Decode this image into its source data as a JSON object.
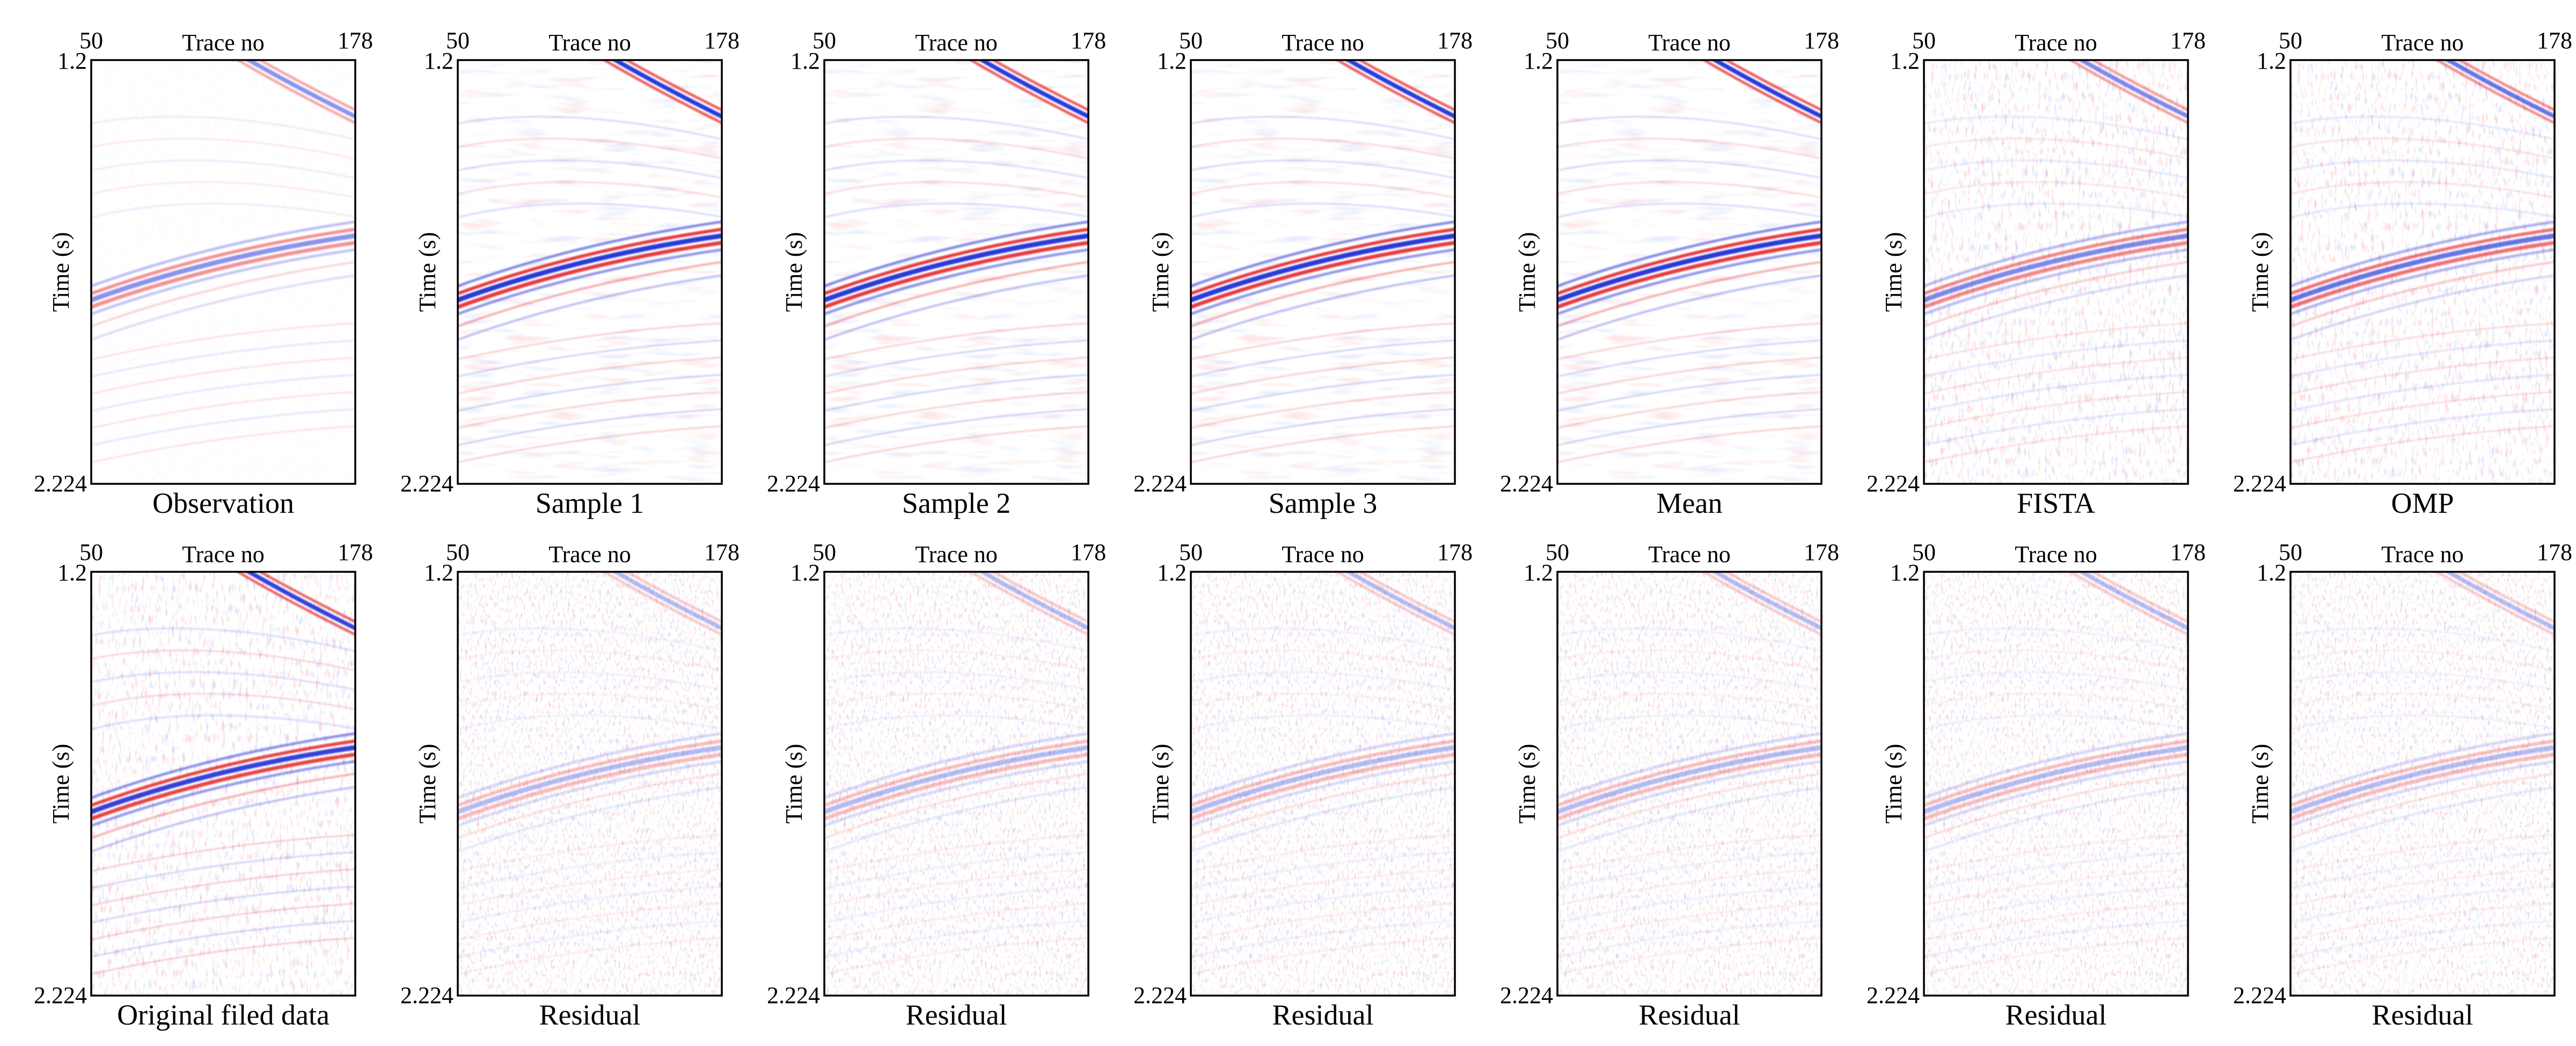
{
  "colors": {
    "positive": "#e31a1c",
    "negative": "#1f2fd6",
    "background": "#ffffff",
    "frame": "#000000"
  },
  "chart_data": [
    {
      "type": "heatmap",
      "title": "Observation",
      "xlabel": "Trace no",
      "ylabel": "Time (s)",
      "xlim": [
        50,
        178
      ],
      "ylim": [
        1.2,
        2.224
      ],
      "x_ticks": [
        "50",
        "178"
      ],
      "y_ticks": [
        "1.2",
        "2.224"
      ]
    },
    {
      "type": "heatmap",
      "title": "Sample 1",
      "xlabel": "Trace no",
      "ylabel": "Time (s)",
      "xlim": [
        50,
        178
      ],
      "ylim": [
        1.2,
        2.224
      ],
      "x_ticks": [
        "50",
        "178"
      ],
      "y_ticks": [
        "1.2",
        "2.224"
      ]
    },
    {
      "type": "heatmap",
      "title": "Sample 2",
      "xlabel": "Trace no",
      "ylabel": "Time (s)",
      "xlim": [
        50,
        178
      ],
      "ylim": [
        1.2,
        2.224
      ],
      "x_ticks": [
        "50",
        "178"
      ],
      "y_ticks": [
        "1.2",
        "2.224"
      ]
    },
    {
      "type": "heatmap",
      "title": "Sample 3",
      "xlabel": "Trace no",
      "ylabel": "Time (s)",
      "xlim": [
        50,
        178
      ],
      "ylim": [
        1.2,
        2.224
      ],
      "x_ticks": [
        "50",
        "178"
      ],
      "y_ticks": [
        "1.2",
        "2.224"
      ]
    },
    {
      "type": "heatmap",
      "title": "Mean",
      "xlabel": "Trace no",
      "ylabel": "Time (s)",
      "xlim": [
        50,
        178
      ],
      "ylim": [
        1.2,
        2.224
      ],
      "x_ticks": [
        "50",
        "178"
      ],
      "y_ticks": [
        "1.2",
        "2.224"
      ]
    },
    {
      "type": "heatmap",
      "title": "FISTA",
      "xlabel": "Trace no",
      "ylabel": "Time (s)",
      "xlim": [
        50,
        178
      ],
      "ylim": [
        1.2,
        2.224
      ],
      "x_ticks": [
        "50",
        "178"
      ],
      "y_ticks": [
        "1.2",
        "2.224"
      ]
    },
    {
      "type": "heatmap",
      "title": "OMP",
      "xlabel": "Trace no",
      "ylabel": "Time (s)",
      "xlim": [
        50,
        178
      ],
      "ylim": [
        1.2,
        2.224
      ],
      "x_ticks": [
        "50",
        "178"
      ],
      "y_ticks": [
        "1.2",
        "2.224"
      ]
    },
    {
      "type": "heatmap",
      "title": "Original filed data",
      "xlabel": "Trace no",
      "ylabel": "Time (s)",
      "xlim": [
        50,
        178
      ],
      "ylim": [
        1.2,
        2.224
      ],
      "x_ticks": [
        "50",
        "178"
      ],
      "y_ticks": [
        "1.2",
        "2.224"
      ]
    },
    {
      "type": "heatmap",
      "title": "Residual",
      "xlabel": "Trace no",
      "ylabel": "Time (s)",
      "xlim": [
        50,
        178
      ],
      "ylim": [
        1.2,
        2.224
      ],
      "x_ticks": [
        "50",
        "178"
      ],
      "y_ticks": [
        "1.2",
        "2.224"
      ]
    },
    {
      "type": "heatmap",
      "title": "Residual",
      "xlabel": "Trace no",
      "ylabel": "Time (s)",
      "xlim": [
        50,
        178
      ],
      "ylim": [
        1.2,
        2.224
      ],
      "x_ticks": [
        "50",
        "178"
      ],
      "y_ticks": [
        "1.2",
        "2.224"
      ]
    },
    {
      "type": "heatmap",
      "title": "Residual",
      "xlabel": "Trace no",
      "ylabel": "Time (s)",
      "xlim": [
        50,
        178
      ],
      "ylim": [
        1.2,
        2.224
      ],
      "x_ticks": [
        "50",
        "178"
      ],
      "y_ticks": [
        "1.2",
        "2.224"
      ]
    },
    {
      "type": "heatmap",
      "title": "Residual",
      "xlabel": "Trace no",
      "ylabel": "Time (s)",
      "xlim": [
        50,
        178
      ],
      "ylim": [
        1.2,
        2.224
      ],
      "x_ticks": [
        "50",
        "178"
      ],
      "y_ticks": [
        "1.2",
        "2.224"
      ]
    },
    {
      "type": "heatmap",
      "title": "Residual",
      "xlabel": "Trace no",
      "ylabel": "Time (s)",
      "xlim": [
        50,
        178
      ],
      "ylim": [
        1.2,
        2.224
      ],
      "x_ticks": [
        "50",
        "178"
      ],
      "y_ticks": [
        "1.2",
        "2.224"
      ]
    },
    {
      "type": "heatmap",
      "title": "Residual",
      "xlabel": "Trace no",
      "ylabel": "Time (s)",
      "xlim": [
        50,
        178
      ],
      "ylim": [
        1.2,
        2.224
      ],
      "x_ticks": [
        "50",
        "178"
      ],
      "y_ticks": [
        "1.2",
        "2.224"
      ]
    }
  ]
}
